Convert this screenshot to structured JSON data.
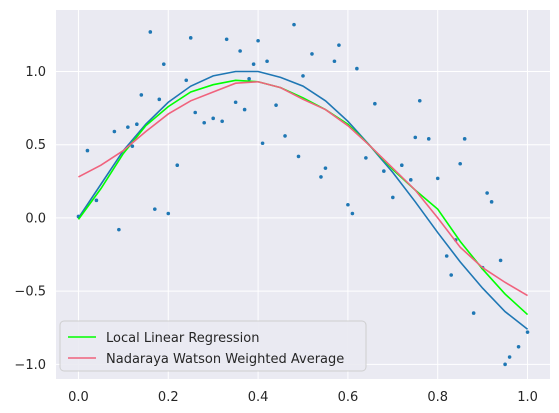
{
  "chart_data": {
    "type": "scatter",
    "title": "",
    "xlabel": "",
    "ylabel": "",
    "xlim": [
      -0.05,
      1.05
    ],
    "ylim": [
      -1.1,
      1.42
    ],
    "grid": true,
    "legend_placement": "lower-left",
    "background_color": "#eaeaf2",
    "x_ticks": [
      0.0,
      0.2,
      0.4,
      0.6,
      0.8,
      1.0
    ],
    "x_tick_labels": [
      "0.0",
      "0.2",
      "0.4",
      "0.6",
      "0.8",
      "1.0"
    ],
    "y_ticks": [
      -1.0,
      -0.5,
      0.0,
      0.5,
      1.0
    ],
    "y_tick_labels": [
      "−1.0",
      "−0.5",
      "0.0",
      "0.5",
      "1.0"
    ],
    "points": {
      "color": "#1f77b4",
      "x": [
        0.0,
        0.02,
        0.04,
        0.08,
        0.09,
        0.11,
        0.12,
        0.13,
        0.14,
        0.16,
        0.17,
        0.18,
        0.19,
        0.2,
        0.22,
        0.24,
        0.25,
        0.26,
        0.28,
        0.3,
        0.32,
        0.33,
        0.35,
        0.36,
        0.37,
        0.38,
        0.39,
        0.4,
        0.41,
        0.42,
        0.44,
        0.46,
        0.48,
        0.49,
        0.5,
        0.52,
        0.54,
        0.55,
        0.57,
        0.58,
        0.6,
        0.61,
        0.62,
        0.64,
        0.66,
        0.68,
        0.7,
        0.72,
        0.74,
        0.75,
        0.76,
        0.78,
        0.8,
        0.82,
        0.83,
        0.84,
        0.85,
        0.86,
        0.88,
        0.9,
        0.91,
        0.92,
        0.94,
        0.95,
        0.96,
        0.98,
        1.0
      ],
      "y": [
        0.01,
        0.46,
        0.12,
        0.59,
        -0.08,
        0.62,
        0.49,
        0.64,
        0.84,
        1.27,
        0.06,
        0.81,
        1.05,
        0.03,
        0.36,
        0.94,
        1.23,
        0.72,
        0.65,
        0.68,
        0.66,
        1.22,
        0.79,
        1.14,
        0.74,
        0.95,
        1.05,
        1.21,
        0.51,
        1.07,
        0.77,
        0.56,
        1.32,
        0.42,
        0.97,
        1.12,
        0.28,
        0.34,
        1.07,
        1.18,
        0.09,
        0.03,
        1.02,
        0.41,
        0.78,
        0.32,
        0.14,
        0.36,
        0.26,
        0.55,
        0.8,
        0.54,
        0.27,
        -0.26,
        -0.39,
        -0.15,
        0.37,
        0.54,
        -0.65,
        -0.34,
        0.17,
        0.11,
        -0.29,
        -1.0,
        -0.95,
        -0.88,
        -0.78
      ]
    },
    "series": [
      {
        "name": "",
        "type": "line",
        "color": "#1f77b4",
        "x": [
          0.0,
          0.05,
          0.1,
          0.15,
          0.2,
          0.25,
          0.3,
          0.35,
          0.4,
          0.45,
          0.5,
          0.55,
          0.6,
          0.65,
          0.7,
          0.75,
          0.8,
          0.85,
          0.9,
          0.95,
          1.0
        ],
        "y": [
          0.0,
          0.23,
          0.46,
          0.64,
          0.79,
          0.9,
          0.97,
          1.0,
          1.0,
          0.96,
          0.9,
          0.8,
          0.66,
          0.49,
          0.31,
          0.11,
          -0.1,
          -0.3,
          -0.48,
          -0.64,
          -0.76
        ]
      },
      {
        "name": "Local Linear Regression",
        "type": "line",
        "color": "#00ff00",
        "x": [
          0.0,
          0.05,
          0.1,
          0.15,
          0.2,
          0.25,
          0.3,
          0.35,
          0.4,
          0.45,
          0.5,
          0.55,
          0.6,
          0.65,
          0.7,
          0.75,
          0.8,
          0.85,
          0.9,
          0.95,
          1.0
        ],
        "y": [
          -0.01,
          0.2,
          0.44,
          0.63,
          0.76,
          0.86,
          0.91,
          0.94,
          0.93,
          0.89,
          0.82,
          0.74,
          0.64,
          0.49,
          0.33,
          0.19,
          0.06,
          -0.16,
          -0.35,
          -0.52,
          -0.66
        ]
      },
      {
        "name": "Nadaraya Watson Weighted Average",
        "type": "line",
        "color": "#f0627d",
        "x": [
          0.0,
          0.05,
          0.1,
          0.15,
          0.2,
          0.25,
          0.3,
          0.35,
          0.4,
          0.45,
          0.5,
          0.55,
          0.6,
          0.65,
          0.7,
          0.75,
          0.8,
          0.85,
          0.9,
          0.95,
          1.0
        ],
        "y": [
          0.28,
          0.36,
          0.46,
          0.59,
          0.71,
          0.8,
          0.86,
          0.92,
          0.93,
          0.89,
          0.81,
          0.74,
          0.63,
          0.49,
          0.34,
          0.19,
          0.0,
          -0.2,
          -0.34,
          -0.44,
          -0.53
        ]
      }
    ]
  }
}
